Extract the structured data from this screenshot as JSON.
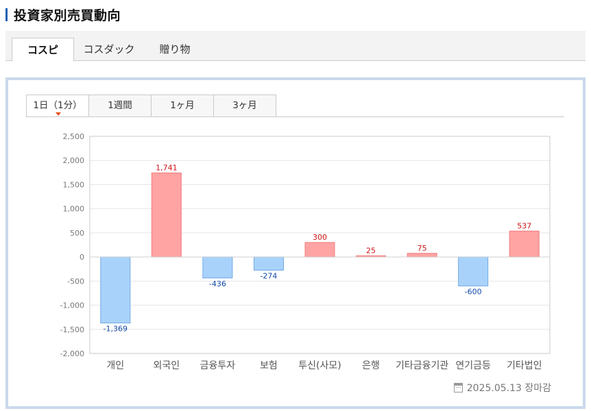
{
  "page": {
    "title": "投資家別売買動向"
  },
  "market_tabs": [
    {
      "label": "コスピ",
      "active": true
    },
    {
      "label": "コスダック",
      "active": false
    },
    {
      "label": "贈り物",
      "active": false
    }
  ],
  "period_tabs": [
    {
      "label": "1日（1分）",
      "active": true
    },
    {
      "label": "1週間",
      "active": false
    },
    {
      "label": "1ヶ月",
      "active": false
    },
    {
      "label": "3ヶ月",
      "active": false
    }
  ],
  "footer": {
    "date_text": "2025.05.13 장마감",
    "icon": "calendar-icon"
  },
  "colors": {
    "positive_fill": "#ffa3a3",
    "positive_stroke": "#f07d7d",
    "positive_text": "#cc1111",
    "negative_fill": "#a9d2fb",
    "negative_stroke": "#6ea8e4",
    "negative_text": "#1149a8",
    "grid": "#e6e6e6",
    "axis": "#c9c9c9",
    "tab_accent": "#e8501c",
    "frame": "#c9d9ec"
  },
  "chart_data": {
    "type": "bar",
    "categories": [
      "개인",
      "외국인",
      "금융투자",
      "보험",
      "투신(사모)",
      "은행",
      "기타금융기관",
      "연기금등",
      "기타법인"
    ],
    "values": [
      -1369,
      1741,
      -436,
      -274,
      300,
      25,
      75,
      -600,
      537
    ],
    "value_labels": [
      "-1,369",
      "1,741",
      "-436",
      "-274",
      "300",
      "25",
      "75",
      "-600",
      "537"
    ],
    "ylim": [
      -2000,
      2500
    ],
    "yticks": [
      2500,
      2000,
      1500,
      1000,
      500,
      0,
      -500,
      -1000,
      -1500,
      -2000
    ],
    "ytick_labels": [
      "2,500",
      "2,000",
      "1,500",
      "1,000",
      "500",
      "0",
      "-500",
      "-1,000",
      "-1,500",
      "-2,000"
    ],
    "grid": true,
    "title": "",
    "xlabel": "",
    "ylabel": ""
  }
}
